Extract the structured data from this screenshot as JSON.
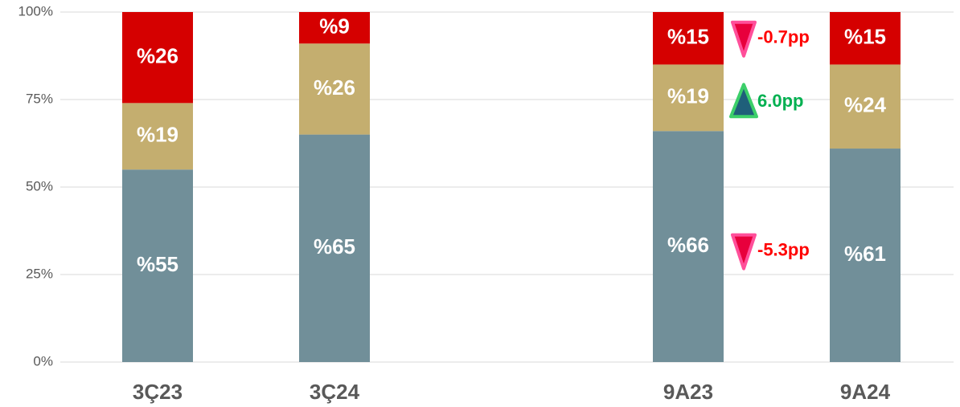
{
  "chart_data": {
    "type": "stacked_bar",
    "categories": [
      "3Ç23",
      "3Ç24",
      null,
      "9A23",
      "9A24"
    ],
    "series": [
      {
        "color": "#718f99",
        "values": [
          55,
          65,
          null,
          66,
          61
        ],
        "value_labels": [
          "%55",
          "%65",
          null,
          "%66",
          "%61"
        ],
        "change": {
          "label": "-5.3pp",
          "direction": "down",
          "color": "#ff0000"
        }
      },
      {
        "color": "#c4ae6f",
        "values": [
          19,
          26,
          null,
          19,
          24
        ],
        "value_labels": [
          "%19",
          "%26",
          null,
          "%19",
          "%24"
        ],
        "change": {
          "label": "6.0pp",
          "direction": "up",
          "color": "#00b050"
        }
      },
      {
        "color": "#d50000",
        "values": [
          26,
          9,
          null,
          15,
          15
        ],
        "value_labels": [
          "%26",
          "%9",
          null,
          "%15",
          "%15"
        ],
        "change": {
          "label": "-0.7pp",
          "direction": "down",
          "color": "#ff0000"
        }
      }
    ],
    "ylim": [
      0,
      100
    ],
    "yticks": [
      {
        "value": 0,
        "label": "0%"
      },
      {
        "value": 25,
        "label": "25%"
      },
      {
        "value": 50,
        "label": "50%"
      },
      {
        "value": 75,
        "label": "75%"
      },
      {
        "value": 100,
        "label": "100%"
      }
    ],
    "grid": true
  }
}
